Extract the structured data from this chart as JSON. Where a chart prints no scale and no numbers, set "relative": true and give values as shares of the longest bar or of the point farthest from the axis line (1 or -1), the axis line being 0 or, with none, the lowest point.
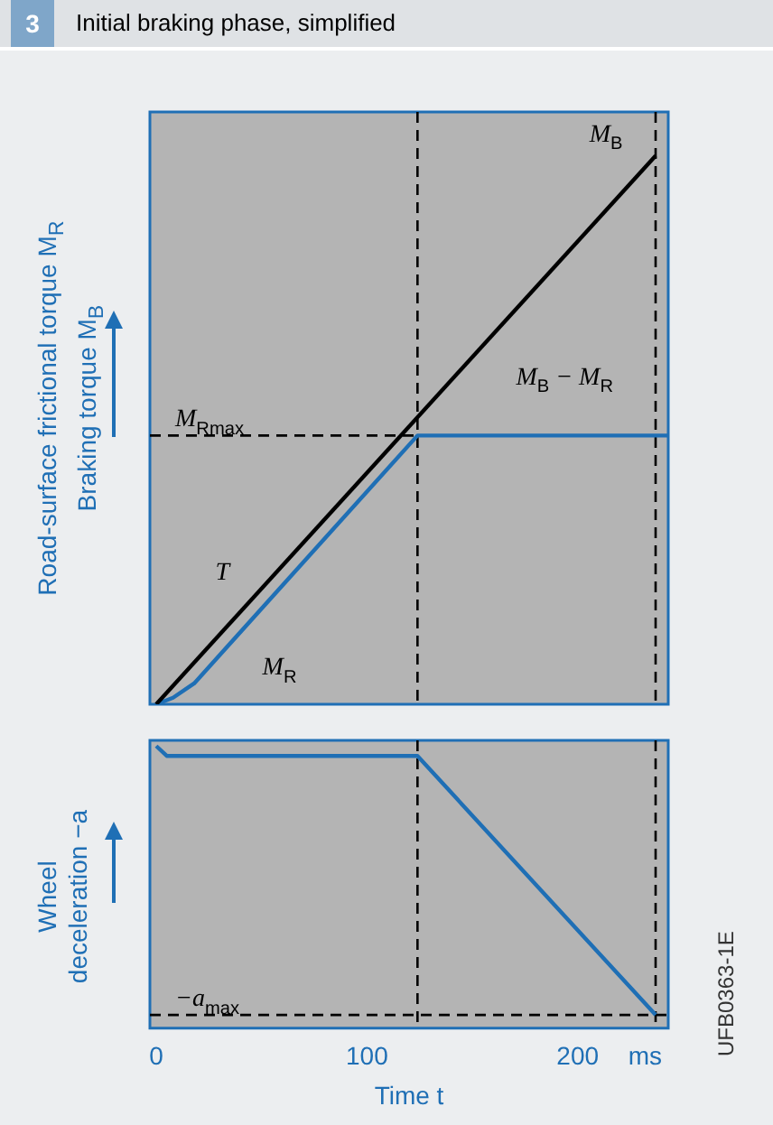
{
  "chart_data": [
    {
      "type": "line",
      "title": "Initial braking phase, simplified",
      "ylabel": "Road-surface frictional torque M$_{R}$\nBraking torque M$_{B}$",
      "relative": true,
      "xlim": [
        -3,
        243
      ],
      "tick_labels": false,
      "legend": false,
      "grid": false,
      "marker": "none",
      "line_style": "solid",
      "series": [
        {
          "color": "#000000",
          "x": [
            0,
            237
          ],
          "values": [
            0,
            1
          ]
        },
        {
          "color": "#1f6fb5",
          "x": [
            0,
            8,
            18,
            124,
            243
          ],
          "values": [
            0,
            0.012,
            0.038,
            0.49,
            0.49
          ]
        }
      ],
      "ref_lines": [
        {
          "axis": "y",
          "value": 0.49,
          "label": "M$_{Rmax}$",
          "color": "#000000",
          "line_style": "dashed"
        },
        {
          "axis": "x",
          "value": 124,
          "color": "#000000",
          "line_style": "dashed"
        },
        {
          "axis": "x",
          "value": 237,
          "color": "#000000",
          "line_style": "dashed"
        }
      ],
      "annotations": [
        "3",
        "M$_{B}$",
        "M$_{B}$ − M$_{R}$",
        "T",
        "M$_{R}$"
      ]
    },
    {
      "type": "line",
      "xlabel": "Time t",
      "ylabel": "Wheel\ndeceleration −a",
      "relative": true,
      "xlim": [
        -3,
        243
      ],
      "xticks": [
        0,
        100,
        200,
        {
          "value": 232,
          "label": "ms"
        }
      ],
      "legend": false,
      "grid": false,
      "marker": "none",
      "line_style": "solid",
      "series": [
        {
          "color": "#1f6fb5",
          "x": [
            0,
            5,
            124,
            237
          ],
          "values": [
            1,
            0.965,
            0.965,
            0.047
          ]
        }
      ],
      "ref_lines": [
        {
          "axis": "y",
          "value": 0.047,
          "label": "−a$_{max}$",
          "color": "#000000",
          "line_style": "dashed"
        },
        {
          "axis": "x",
          "value": 124,
          "color": "#000000",
          "line_style": "dashed"
        },
        {
          "axis": "x",
          "value": 237,
          "color": "#000000",
          "line_style": "dashed"
        }
      ],
      "annotations": [
        "UFB0363-1E"
      ]
    }
  ]
}
